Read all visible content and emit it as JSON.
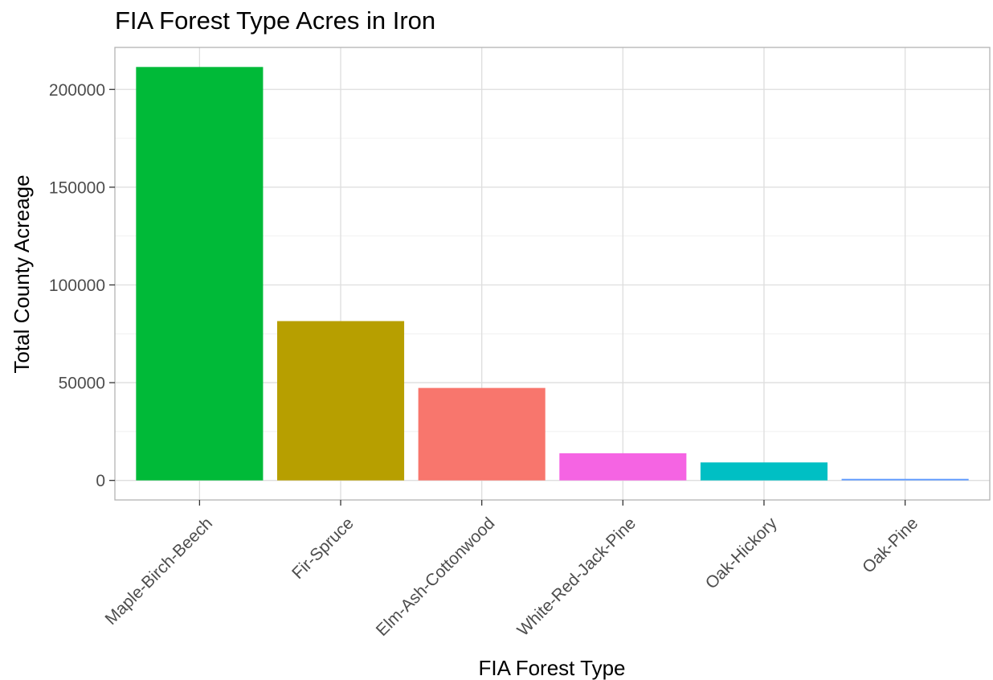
{
  "chart_data": {
    "type": "bar",
    "title": "FIA Forest Type Acres in Iron",
    "xlabel": "FIA Forest Type",
    "ylabel": "Total County Acreage",
    "categories": [
      "Maple-Birch-Beech",
      "Fir-Spruce",
      "Elm-Ash-Cottonwood",
      "White-Red-Jack-Pine",
      "Oak-Hickory",
      "Oak-Pine"
    ],
    "values": [
      211500,
      81500,
      47300,
      13900,
      9200,
      800
    ],
    "colors": [
      "#00BA38",
      "#B79F00",
      "#F8766D",
      "#F564E3",
      "#00BFC4",
      "#619CFF"
    ],
    "ylim": [
      -10000,
      221500
    ],
    "yticks": [
      0,
      50000,
      100000,
      150000,
      200000
    ],
    "ytick_labels": [
      "0",
      "50000",
      "100000",
      "150000",
      "200000"
    ],
    "grid": true,
    "legend": "none"
  }
}
